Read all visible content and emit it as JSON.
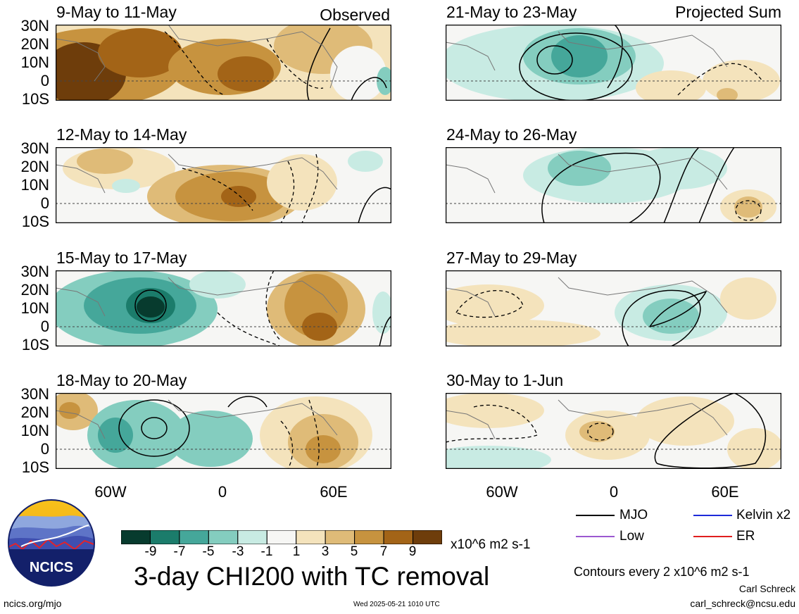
{
  "panels_left": [
    {
      "title": "9-May to 11-May"
    },
    {
      "title": "12-May to 14-May"
    },
    {
      "title": "15-May to 17-May"
    },
    {
      "title": "18-May to 20-May"
    }
  ],
  "panels_right": [
    {
      "title": "21-May to 23-May"
    },
    {
      "title": "24-May to 26-May"
    },
    {
      "title": "27-May to 29-May"
    },
    {
      "title": "30-May to 1-Jun"
    }
  ],
  "tags": {
    "observed": "Observed",
    "projected": "Projected Sum"
  },
  "lat_labels": [
    "30N",
    "20N",
    "10N",
    "0",
    "10S"
  ],
  "lon_labels": [
    "60W",
    "0",
    "60E"
  ],
  "colorbar": {
    "ticks": [
      "-9",
      "-7",
      "-5",
      "-3",
      "-1",
      "1",
      "3",
      "5",
      "7",
      "9"
    ],
    "units": "x10^6 m2 s-1",
    "colors": [
      "#073b2e",
      "#1b7c6b",
      "#45a79a",
      "#84cdbf",
      "#c8ebe3",
      "#f6f6f4",
      "#f4e3bc",
      "#dfbb78",
      "#c7933f",
      "#a36417",
      "#6e3d0b"
    ]
  },
  "main_title": "3-day CHI200 with TC removal",
  "legend": {
    "mjo": {
      "label": "MJO",
      "color": "#000000"
    },
    "kelvin": {
      "label": "Kelvin x2",
      "color": "#1d2bd9"
    },
    "low": {
      "label": "Low",
      "color": "#9b59d0"
    },
    "er": {
      "label": "ER",
      "color": "#e01e1e"
    }
  },
  "contours_note": "Contours every 2 x10^6 m2 s-1",
  "credit_name": "Carl Schreck",
  "credit_email": "carl_schreck@ncsu.edu",
  "site_link": "ncics.org/mjo",
  "timestamp": "Wed 2025-05-21 1010 UTC",
  "logo_text": "NCICS"
}
